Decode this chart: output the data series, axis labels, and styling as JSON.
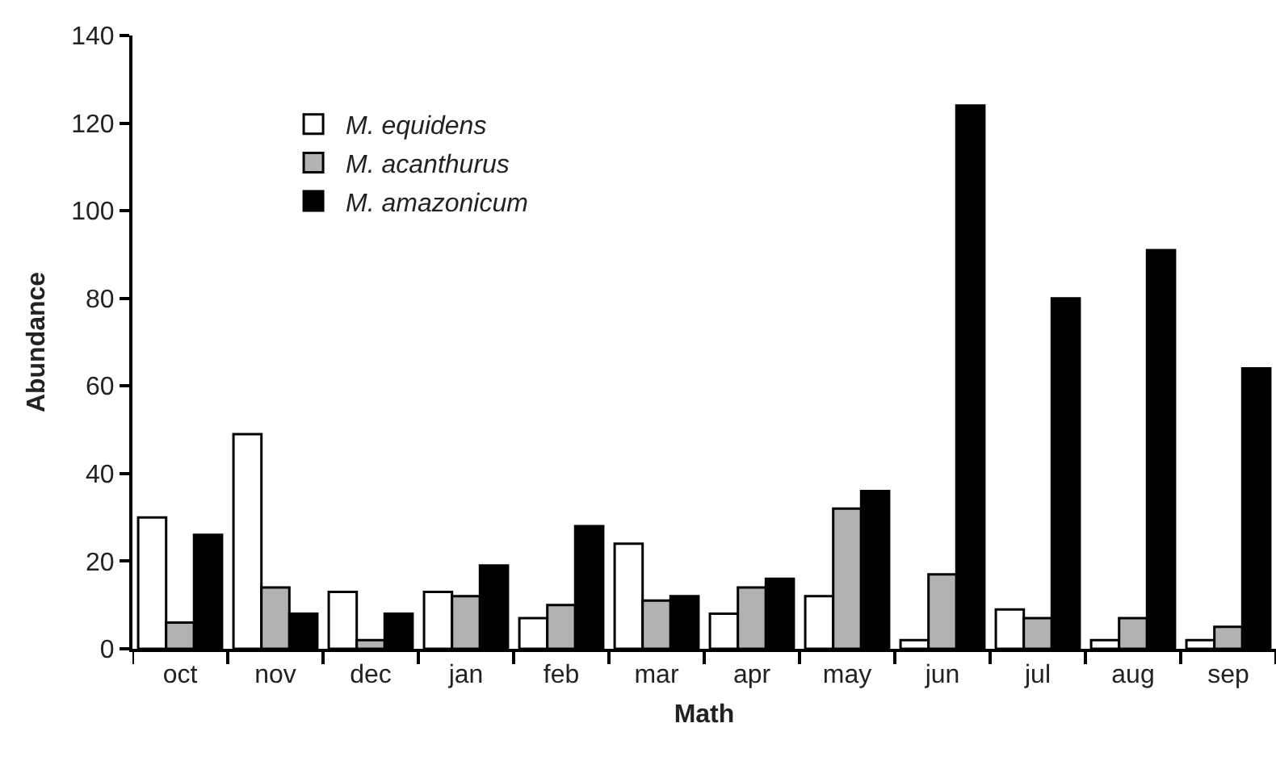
{
  "chart_data": {
    "type": "bar",
    "xlabel": "Math",
    "ylabel": "Abundance",
    "categories": [
      "oct",
      "nov",
      "dec",
      "jan",
      "feb",
      "mar",
      "apr",
      "may",
      "jun",
      "jul",
      "aug",
      "sep"
    ],
    "series": [
      {
        "name": "M. equidens",
        "color": "#ffffff",
        "values": [
          30,
          49,
          13,
          13,
          7,
          24,
          8,
          12,
          2,
          9,
          2,
          2
        ]
      },
      {
        "name": "M. acanthurus",
        "color": "#b2b2b2",
        "values": [
          6,
          14,
          2,
          12,
          10,
          11,
          14,
          32,
          17,
          7,
          7,
          5
        ]
      },
      {
        "name": "M. amazonicum",
        "color": "#000000",
        "values": [
          26,
          8,
          8,
          19,
          28,
          12,
          16,
          36,
          124,
          80,
          91,
          64
        ]
      }
    ],
    "ylim": [
      0,
      140
    ],
    "yticks": [
      0,
      20,
      40,
      60,
      80,
      100,
      120,
      140
    ],
    "grid": false,
    "legend": "top left"
  }
}
